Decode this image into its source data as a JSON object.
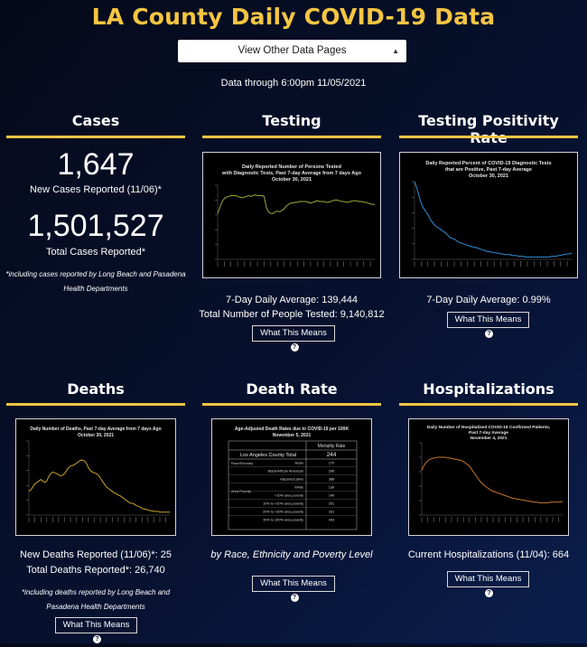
{
  "title": "LA County Daily COVID-19 Data",
  "nav": {
    "select_label": "View Other Data Pages"
  },
  "data_through": "Data through 6:00pm 11/05/2021",
  "cases": {
    "heading": "Cases",
    "new_value": "1,647",
    "new_label": "New Cases Reported (11/06)*",
    "total_value": "1,501,527",
    "total_label": "Total Cases Reported*",
    "note_line1": "*including cases reported by Long Beach and Pasadena",
    "note_line2": "Health Departments"
  },
  "testing": {
    "heading": "Testing",
    "chart_title_1": "Daily Reported Number of Persons Tested",
    "chart_title_2": "with Diagnostic Tests, Past 7-day Average from 7 days Ago",
    "chart_title_3": "October 30, 2021",
    "stat1": "7-Day Daily Average: 139,444",
    "stat2": "Total Number of People Tested: 9,140,812",
    "button": "What This Means"
  },
  "positivity": {
    "heading": "Testing Positivity Rate",
    "chart_title_1": "Daily Reported Percent of COVID-19 Diagnostic Tests",
    "chart_title_2": "that are Positive, Past 7-day Average",
    "chart_title_3": "October 30, 2021",
    "stat1": "7-Day Daily Average: 0.99%",
    "button": "What This Means"
  },
  "deaths": {
    "heading": "Deaths",
    "chart_title_1": "Daily Number of Deaths, Past 7-day Average from 7 days Ago",
    "chart_title_2": "October 30, 2021",
    "stat1": "New Deaths Reported (11/06)*: 25",
    "stat2": "Total Deaths Reported*: 26,740",
    "note_line1": "*including deaths reported by Long Beach and",
    "note_line2": "Pasadena Health Departments",
    "button": "What This Means"
  },
  "death_rate": {
    "heading": "Death Rate",
    "table_title_1": "Age-Adjusted Death Rates due to COVID-19 per 100K",
    "table_title_2": "November 5, 2021",
    "col_header": "Mortality Rate",
    "county_label": "Los Angeles County Total",
    "county_value": "244",
    "group_race": "Race/Ethnicity",
    "group_poverty": "Area Poverty",
    "rows": [
      {
        "label": "Asian",
        "value": "170"
      },
      {
        "label": "Black/African American",
        "value": "246"
      },
      {
        "label": "Hispanic/Latino",
        "value": "388"
      },
      {
        "label": "White",
        "value": "139"
      },
      {
        "label": "<10% area poverty",
        "value": "140"
      },
      {
        "label": "10% to <20% area poverty",
        "value": "251"
      },
      {
        "label": "20% to <30% area poverty",
        "value": "331"
      },
      {
        "label": "30% to 100% area poverty",
        "value": "443"
      }
    ],
    "caption": "by Race, Ethnicity and Poverty Level",
    "button": "What This Means"
  },
  "hospitalizations": {
    "heading": "Hospitalizations",
    "chart_title_1": "Daily Number of Hospitalized COVID-19 Confirmed Patients,",
    "chart_title_2": "Past 7-day Average",
    "chart_title_3": "November 4, 2021",
    "stat1": "Current Hospitalizations (11/04): 664",
    "button": "What This Means"
  },
  "colors": {
    "accent": "#f4c542",
    "testing_line": "#9aaa3a",
    "positivity_line": "#2f8fd6",
    "deaths_line": "#c9a227",
    "hosp_line": "#c8752a"
  },
  "chart_data": [
    {
      "type": "line",
      "title": "Daily Reported Number of Persons Tested with Diagnostic Tests, Past 7-day Average from 7 days Ago October 30, 2021",
      "series": [
        {
          "values": [
            62,
            70,
            78,
            82,
            84,
            85,
            86,
            86,
            86,
            85,
            84,
            83,
            84,
            85,
            86,
            85,
            86,
            87,
            86,
            86,
            86,
            85,
            70,
            64,
            62,
            62,
            64,
            65,
            64,
            66,
            68,
            72,
            74,
            76,
            76,
            77,
            77,
            78,
            78,
            78,
            78,
            77,
            76,
            77,
            78,
            79,
            78,
            78,
            78,
            77,
            77,
            78,
            79,
            80,
            80,
            79,
            78,
            78,
            77,
            77,
            78,
            79,
            79,
            79,
            78,
            78,
            77,
            77,
            76,
            75,
            74,
            74
          ]
        }
      ]
    },
    {
      "type": "line",
      "title": "Daily Reported Percent of COVID-19 Diagnostic Tests that are Positive, Past 7-day Average October 30, 2021",
      "series": [
        {
          "values": [
            100,
            92,
            82,
            72,
            66,
            62,
            58,
            52,
            48,
            44,
            42,
            40,
            38,
            36,
            34,
            31,
            28,
            27,
            26,
            24,
            22,
            21,
            20,
            19,
            18,
            17,
            16,
            16,
            15,
            14,
            13,
            12,
            11,
            10,
            10,
            9,
            9,
            8,
            8,
            7,
            7,
            6,
            6,
            6,
            5,
            5,
            5,
            4,
            4,
            4,
            3,
            3,
            3,
            3,
            3,
            3,
            3,
            3,
            3,
            3,
            3,
            3,
            4,
            4,
            4,
            5,
            5,
            6,
            6,
            7,
            7,
            8
          ]
        }
      ]
    },
    {
      "type": "line",
      "title": "Daily Number of Deaths, Past 7-day Average from 7 days Ago October 30, 2021",
      "series": [
        {
          "values": [
            32,
            34,
            38,
            42,
            44,
            46,
            48,
            46,
            44,
            46,
            52,
            56,
            58,
            57,
            56,
            54,
            53,
            54,
            56,
            60,
            64,
            66,
            67,
            68,
            70,
            72,
            74,
            74,
            73,
            70,
            64,
            60,
            58,
            57,
            56,
            54,
            50,
            46,
            42,
            38,
            36,
            34,
            32,
            30,
            29,
            27,
            26,
            24,
            22,
            20,
            18,
            16,
            16,
            15,
            13,
            12,
            11,
            9,
            8,
            8,
            7,
            6,
            6,
            5,
            5,
            5,
            4,
            4,
            4,
            4,
            4,
            4
          ]
        }
      ]
    },
    {
      "type": "line",
      "title": "Daily Number of Hospitalized COVID-19 Confirmed Patients, Past 7-day Average November 4, 2021",
      "series": [
        {
          "values": [
            62,
            68,
            72,
            75,
            77,
            78,
            79,
            79,
            80,
            80,
            80,
            80,
            80,
            79,
            79,
            78,
            78,
            77,
            77,
            76,
            76,
            74,
            72,
            70,
            68,
            64,
            60,
            56,
            52,
            48,
            45,
            42,
            40,
            38,
            36,
            34,
            33,
            32,
            31,
            30,
            29,
            28,
            27,
            26,
            25,
            24,
            23,
            23,
            22,
            22,
            21,
            21,
            20,
            20,
            19,
            19,
            18,
            18,
            18,
            17,
            17,
            17,
            17,
            17,
            17,
            18,
            18,
            18,
            18,
            18,
            18,
            19
          ]
        }
      ]
    }
  ]
}
